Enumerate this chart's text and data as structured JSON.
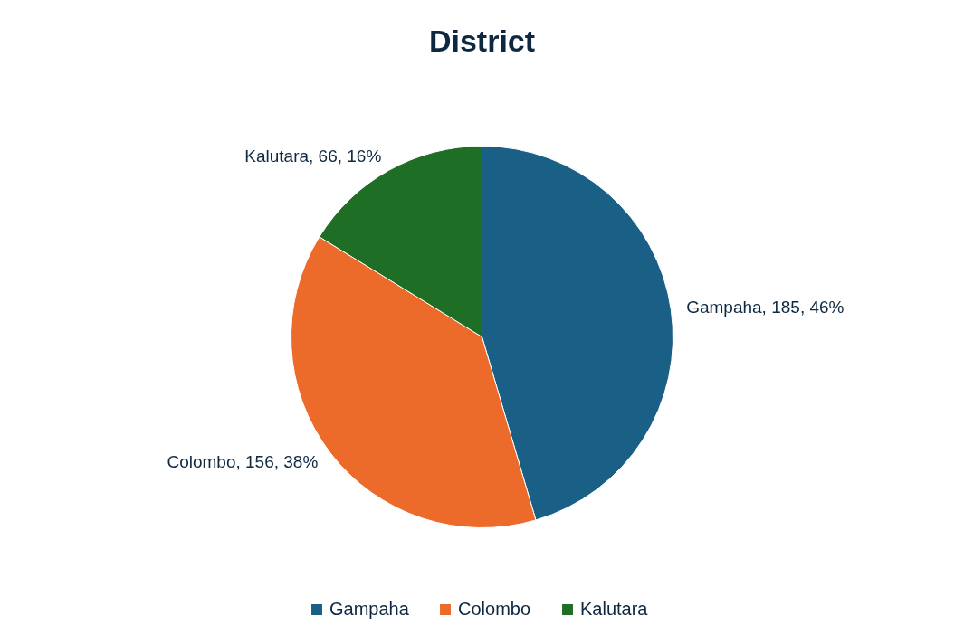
{
  "chart_data": {
    "type": "pie",
    "title": "District",
    "categories": [
      "Gampaha",
      "Colombo",
      "Kalutara"
    ],
    "values": [
      185,
      156,
      66
    ],
    "colors": [
      "#1a5f85",
      "#ec6a2a",
      "#1f6e25"
    ],
    "value_labels": [
      "Gampaha, 185, 46%",
      "Colombo, 156, 38%",
      "Kalutara, 66, 16%"
    ],
    "legend": "bottom"
  }
}
